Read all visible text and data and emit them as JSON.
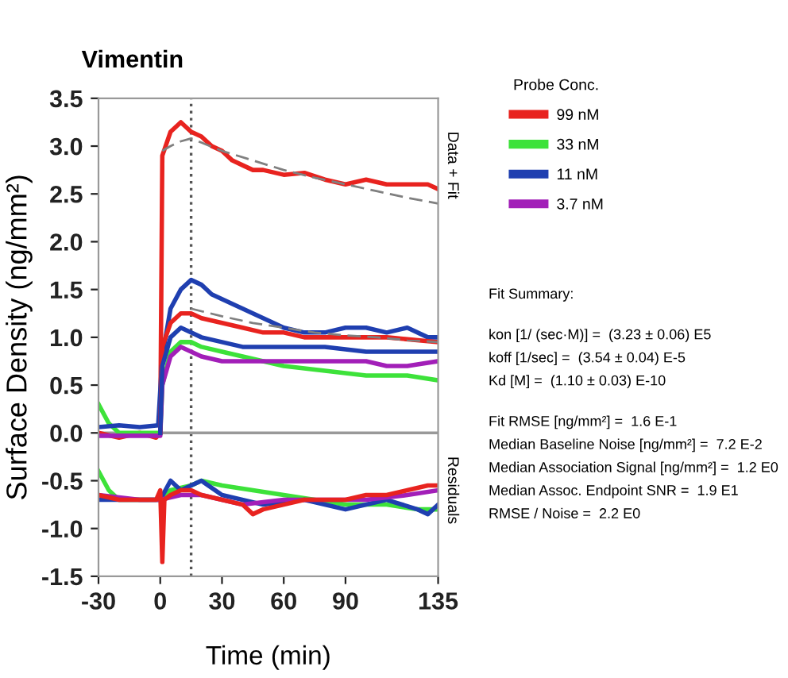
{
  "chart_data": {
    "type": "line",
    "title": "Vimentin",
    "xlabel": "Time (min)",
    "ylabel": "Surface Density (ng/mm²)",
    "legend_title": "Probe Conc.",
    "legend": "right",
    "grid": false,
    "marker": "none",
    "line_style": "solid",
    "xlim": [
      -30,
      135
    ],
    "xticks": [
      -30,
      0,
      30,
      60,
      90,
      135
    ],
    "ylim": [
      -1.5,
      3.5
    ],
    "yticks": [
      {
        "value": -1.5,
        "label": "-1.5"
      },
      {
        "value": -1.0,
        "label": "-1.0"
      },
      {
        "value": -0.5,
        "label": "-0.5"
      },
      {
        "value": 0,
        "label": "0.0"
      },
      {
        "value": 0.5,
        "label": "0.5"
      },
      {
        "value": 1.0,
        "label": "1.0"
      },
      {
        "value": 1.5,
        "label": "1.5"
      },
      {
        "value": 2.0,
        "label": "2.0"
      },
      {
        "value": 2.5,
        "label": "2.5"
      },
      {
        "value": 3.0,
        "label": "3.0"
      },
      {
        "value": 3.5,
        "label": "3.5"
      }
    ],
    "ref_lines": [
      {
        "axis": "x",
        "value": 15,
        "color": "#555555",
        "line_style": "dotted"
      },
      {
        "axis": "y",
        "value": 0,
        "color": "#999999",
        "line_style": "solid"
      }
    ],
    "series": [
      {
        "name": "99 nM",
        "color": "#e8231f",
        "x": [
          -30,
          -20,
          -10,
          -2,
          0,
          1,
          5,
          10,
          15,
          20,
          25,
          30,
          35,
          40,
          45,
          50,
          60,
          70,
          80,
          90,
          100,
          110,
          120,
          130,
          135
        ],
        "values": [
          0.0,
          -0.05,
          0.0,
          -0.05,
          0.0,
          2.9,
          3.15,
          3.25,
          3.15,
          3.1,
          3.0,
          2.95,
          2.85,
          2.8,
          2.75,
          2.75,
          2.7,
          2.72,
          2.65,
          2.6,
          2.65,
          2.6,
          2.6,
          2.6,
          2.55
        ]
      },
      {
        "name": "33 nM",
        "color": "#3de23a",
        "x": [
          -30,
          -25,
          -20,
          -10,
          0,
          1,
          5,
          10,
          15,
          20,
          30,
          40,
          50,
          60,
          80,
          100,
          120,
          135
        ],
        "values": [
          0.3,
          0.1,
          0.0,
          0.0,
          0.0,
          0.5,
          0.85,
          0.95,
          0.95,
          0.9,
          0.85,
          0.8,
          0.75,
          0.7,
          0.65,
          0.6,
          0.6,
          0.55
        ]
      },
      {
        "name": "11 nM",
        "color": "#1f3fb0",
        "x": [
          -30,
          -20,
          -10,
          -1,
          1,
          5,
          10,
          15,
          20,
          25,
          30,
          40,
          50,
          60,
          70,
          80,
          90,
          100,
          110,
          120,
          130,
          135
        ],
        "values": [
          0.06,
          0.08,
          0.06,
          0.08,
          0.8,
          1.3,
          1.5,
          1.6,
          1.55,
          1.45,
          1.4,
          1.3,
          1.2,
          1.1,
          1.05,
          1.05,
          1.1,
          1.1,
          1.05,
          1.1,
          1.0,
          1.0
        ]
      },
      {
        "name": "3.7 nM",
        "color": "#a21fb8",
        "x": [
          -30,
          -20,
          -10,
          0,
          1,
          5,
          10,
          15,
          20,
          30,
          40,
          60,
          80,
          100,
          110,
          120,
          135
        ],
        "values": [
          -0.03,
          -0.03,
          -0.03,
          -0.03,
          0.5,
          0.8,
          0.9,
          0.85,
          0.8,
          0.75,
          0.75,
          0.75,
          0.75,
          0.75,
          0.7,
          0.7,
          0.75
        ]
      },
      {
        "color": "#e8231f",
        "x": [
          0,
          1,
          5,
          10,
          15,
          20,
          30,
          40,
          50,
          60,
          70,
          90,
          110,
          135
        ],
        "values": [
          0.0,
          0.9,
          1.15,
          1.25,
          1.25,
          1.2,
          1.15,
          1.1,
          1.05,
          1.05,
          1.0,
          1.0,
          1.0,
          0.95
        ]
      },
      {
        "color": "#1f3fb0",
        "x": [
          0,
          1,
          5,
          10,
          15,
          20,
          30,
          40,
          60,
          80,
          100,
          120,
          135
        ],
        "values": [
          0.0,
          0.7,
          1.0,
          1.1,
          1.05,
          1.0,
          0.95,
          0.9,
          0.9,
          0.9,
          0.85,
          0.85,
          0.85
        ]
      },
      {
        "color": "#808080",
        "line_style": "dashed",
        "x": [
          1,
          5,
          10,
          15,
          30,
          45,
          60,
          75,
          90,
          105,
          120,
          135
        ],
        "values": [
          2.95,
          3.0,
          3.05,
          3.08,
          2.95,
          2.85,
          2.75,
          2.67,
          2.6,
          2.53,
          2.46,
          2.4
        ]
      },
      {
        "color": "#808080",
        "line_style": "dashed",
        "x": [
          15,
          30,
          45,
          60,
          75,
          90,
          105,
          120,
          135
        ],
        "values": [
          1.3,
          1.22,
          1.15,
          1.1,
          1.05,
          1.02,
          1.0,
          0.97,
          0.95
        ]
      },
      {
        "color": "#3de23a",
        "x": [
          -30,
          -25,
          -20,
          -10,
          0,
          5,
          15,
          20,
          30,
          45,
          60,
          75,
          90,
          110,
          125,
          135
        ],
        "values": [
          -0.4,
          -0.6,
          -0.7,
          -0.7,
          -0.7,
          -0.6,
          -0.55,
          -0.5,
          -0.55,
          -0.6,
          -0.65,
          -0.7,
          -0.75,
          -0.75,
          -0.8,
          -0.8
        ]
      },
      {
        "color": "#1f3fb0",
        "x": [
          -30,
          -10,
          0,
          5,
          10,
          15,
          20,
          30,
          50,
          70,
          90,
          110,
          125,
          130,
          135
        ],
        "values": [
          -0.7,
          -0.7,
          -0.7,
          -0.5,
          -0.6,
          -0.55,
          -0.5,
          -0.65,
          -0.75,
          -0.7,
          -0.8,
          -0.7,
          -0.8,
          -0.85,
          -0.75
        ]
      },
      {
        "color": "#a21fb8",
        "x": [
          -30,
          -10,
          0,
          10,
          20,
          40,
          60,
          80,
          100,
          120,
          135
        ],
        "values": [
          -0.65,
          -0.7,
          -0.7,
          -0.65,
          -0.65,
          -0.75,
          -0.7,
          -0.7,
          -0.7,
          -0.65,
          -0.6
        ]
      },
      {
        "color": "#e8231f",
        "x": [
          -30,
          -20,
          -10,
          -2,
          0,
          1,
          2,
          5,
          10,
          15,
          20,
          30,
          40,
          45,
          50,
          60,
          70,
          80,
          90,
          100,
          110,
          120,
          130,
          135
        ],
        "values": [
          -0.65,
          -0.7,
          -0.7,
          -0.7,
          -0.6,
          -1.35,
          -0.7,
          -0.65,
          -0.6,
          -0.6,
          -0.65,
          -0.7,
          -0.75,
          -0.85,
          -0.8,
          -0.75,
          -0.7,
          -0.7,
          -0.7,
          -0.65,
          -0.65,
          -0.6,
          -0.55,
          -0.55
        ]
      }
    ],
    "annotations": [
      "Data + Fit",
      "Residuals",
      "Fit Summary:",
      "kon [1/ (sec·M)] =  (3.23 ± 0.06) E5",
      "koff [1/sec] =  (3.54 ± 0.04) E-5",
      "Kd [M] =  (1.10 ± 0.03) E-10",
      "Fit RMSE [ng/mm²] =  1.6 E-1",
      "Median Baseline Noise [ng/mm²] =  7.2 E-2",
      "Median Association Signal [ng/mm²] =  1.2 E0",
      "Median Assoc. Endpoint SNR =  1.9 E1",
      "RMSE / Noise =  2.2 E0"
    ]
  }
}
